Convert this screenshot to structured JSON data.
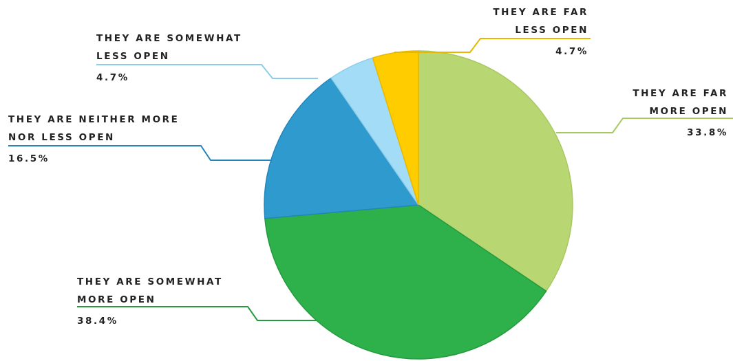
{
  "chart_data": {
    "type": "pie",
    "title": "",
    "slices": [
      {
        "name_lines": [
          "THEY ARE FAR",
          "MORE OPEN"
        ],
        "value": 33.8,
        "value_label": "33.8%",
        "color": "#b8d672",
        "stroke": "#a8c862"
      },
      {
        "name_lines": [
          "THEY ARE SOMEWHAT",
          "MORE OPEN"
        ],
        "value": 38.4,
        "value_label": "38.4%",
        "color": "#2eb04b",
        "stroke": "#259a3f"
      },
      {
        "name_lines": [
          "THEY ARE NEITHER MORE",
          "NOR LESS OPEN"
        ],
        "value": 16.5,
        "value_label": "16.5%",
        "color": "#2f9ace",
        "stroke": "#2286ba"
      },
      {
        "name_lines": [
          "THEY ARE SOMEWHAT",
          "LESS OPEN"
        ],
        "value": 4.7,
        "value_label": "4.7%",
        "color": "#a2dcf6",
        "stroke": "#8ccde9"
      },
      {
        "name_lines": [
          "THEY ARE FAR",
          "LESS OPEN"
        ],
        "value": 4.7,
        "value_label": "4.7%",
        "color": "#ffcc00",
        "stroke": "#e8b800"
      }
    ],
    "legend": "none",
    "data_labels": "outside-with-leader-lines"
  }
}
